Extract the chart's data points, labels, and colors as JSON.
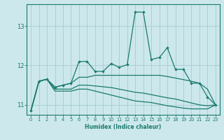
{
  "xlabel": "Humidex (Indice chaleur)",
  "ylabel": "",
  "bg_color": "#cce8ec",
  "grid_color": "#aad0d6",
  "line_color": "#1a7a6e",
  "tick_color": "#1a7a6e",
  "xlim": [
    -0.5,
    23.5
  ],
  "ylim": [
    10.75,
    13.55
  ],
  "yticks": [
    11,
    12,
    13
  ],
  "xticks": [
    0,
    1,
    2,
    3,
    4,
    5,
    6,
    7,
    8,
    9,
    10,
    11,
    12,
    13,
    14,
    15,
    16,
    17,
    18,
    19,
    20,
    21,
    22,
    23
  ],
  "lines": [
    {
      "x": [
        0,
        1,
        2,
        3,
        4,
        5,
        6,
        7,
        8,
        9,
        10,
        11,
        12,
        13,
        14,
        15,
        16,
        17,
        18,
        19,
        20,
        21,
        22,
        23
      ],
      "y": [
        10.85,
        11.6,
        11.65,
        11.45,
        11.5,
        11.55,
        12.1,
        12.1,
        11.85,
        11.85,
        12.05,
        11.95,
        12.02,
        13.35,
        13.35,
        12.15,
        12.2,
        12.45,
        11.9,
        11.9,
        11.55,
        11.55,
        11.2,
        11.0
      ],
      "marker": true
    },
    {
      "x": [
        0,
        1,
        2,
        3,
        4,
        5,
        6,
        7,
        8,
        9,
        10,
        11,
        12,
        13,
        14,
        15,
        16,
        17,
        18,
        19,
        20,
        21,
        22,
        23
      ],
      "y": [
        10.85,
        11.6,
        11.65,
        11.45,
        11.5,
        11.55,
        11.7,
        11.7,
        11.75,
        11.75,
        11.75,
        11.75,
        11.75,
        11.75,
        11.75,
        11.75,
        11.75,
        11.72,
        11.68,
        11.64,
        11.6,
        11.55,
        11.4,
        11.0
      ],
      "marker": false
    },
    {
      "x": [
        0,
        1,
        2,
        3,
        4,
        5,
        6,
        7,
        8,
        9,
        10,
        11,
        12,
        13,
        14,
        15,
        16,
        17,
        18,
        19,
        20,
        21,
        22,
        23
      ],
      "y": [
        10.85,
        11.6,
        11.65,
        11.4,
        11.4,
        11.4,
        11.5,
        11.5,
        11.48,
        11.46,
        11.44,
        11.4,
        11.36,
        11.32,
        11.3,
        11.26,
        11.22,
        11.18,
        11.15,
        11.1,
        11.05,
        11.0,
        10.98,
        11.0
      ],
      "marker": false
    },
    {
      "x": [
        0,
        1,
        2,
        3,
        4,
        5,
        6,
        7,
        8,
        9,
        10,
        11,
        12,
        13,
        14,
        15,
        16,
        17,
        18,
        19,
        20,
        21,
        22,
        23
      ],
      "y": [
        10.85,
        11.6,
        11.65,
        11.35,
        11.35,
        11.35,
        11.4,
        11.4,
        11.35,
        11.3,
        11.25,
        11.2,
        11.15,
        11.1,
        11.08,
        11.06,
        11.02,
        10.98,
        10.95,
        10.92,
        10.9,
        10.9,
        10.9,
        11.0
      ],
      "marker": false
    }
  ]
}
